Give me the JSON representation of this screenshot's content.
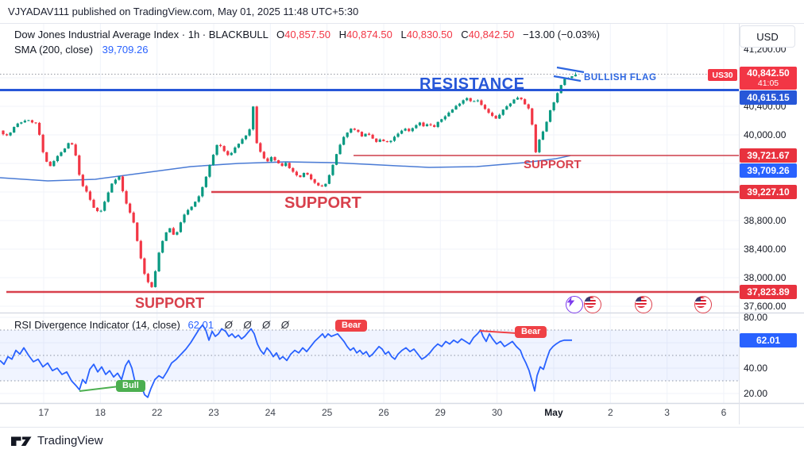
{
  "top_bar": {
    "published_text": "VJYADAV111 published on TradingView.com, May 01, 2025 11:48 UTC+5:30"
  },
  "legend": {
    "symbol_line": "Dow Jones Industrial Average Index · 1h · BLACKBULL",
    "o_label": "O",
    "o": "40,857.50",
    "h_label": "H",
    "h": "40,874.50",
    "l_label": "L",
    "l": "40,830.50",
    "c_label": "C",
    "c": "40,842.50",
    "change": "−13.00 (−0.03%)",
    "sma_label": "SMA (200, close)",
    "sma_value": "39,709.26"
  },
  "toolbar": {
    "currency_button": "USD"
  },
  "price_scale": {
    "axis_labels": [
      {
        "text": "41,200.00",
        "price": 41200
      },
      {
        "text": "40,400.00",
        "price": 40400
      },
      {
        "text": "40,000.00",
        "price": 40000
      },
      {
        "text": "38,800.00",
        "price": 38800
      },
      {
        "text": "38,400.00",
        "price": 38400
      },
      {
        "text": "38,000.00",
        "price": 38000
      },
      {
        "text": "37,600.00",
        "price": 37600
      }
    ],
    "tags": {
      "symbol_tag": "US30",
      "last_price": "40,842.50",
      "countdown": "41:05",
      "resistance_level": "40,615.15",
      "support_level_1": "39,721.67",
      "sma_value": "39,709.26",
      "support_level_2": "39,227.10",
      "support_level_3": "37,823.89",
      "rsi_value": "62.01"
    }
  },
  "rsi_pane": {
    "legend": "RSI Divergence Indicator (14, close)",
    "value": "62.01",
    "zeros": "Ø Ø Ø Ø",
    "axis_labels": [
      {
        "text": "80.00",
        "v": 80
      },
      {
        "text": "40.00",
        "v": 40
      },
      {
        "text": "20.00",
        "v": 20
      }
    ]
  },
  "annotations": {
    "resistance_label": "RESISTANCE",
    "support_label_1": "SUPPORT",
    "support_label_2": "SUPPORT",
    "support_label_3": "SUPPORT",
    "bullish_flag_label": "BULLISH FLAG",
    "bear_label_1": "Bear",
    "bear_label_2": "Bear",
    "bull_label": "Bull"
  },
  "time_axis": {
    "ticks": [
      "17",
      "18",
      "22",
      "23",
      "24",
      "25",
      "26",
      "29",
      "30",
      "May",
      "2",
      "3",
      "6"
    ]
  },
  "footer": {
    "brand": "TradingView"
  },
  "colors": {
    "up": "#089981",
    "down": "#f23645",
    "grid": "#f0f3fa",
    "drawing_blue": "#2757d8",
    "tv_blue": "#2962ff",
    "sma_blue": "#4a7bd5",
    "support_red": "#d8404c",
    "tag_red": "#e8323e",
    "bear": "#ef4146",
    "bull": "#4caf50"
  },
  "chart_data": {
    "type": "candlestick",
    "title": "Dow Jones Industrial Average Index",
    "symbol": "US30",
    "interval": "1h",
    "exchange": "BLACKBULL",
    "last_bar": {
      "open": 40857.5,
      "high": 40874.5,
      "low": 40830.5,
      "close": 40842.5,
      "change": -13.0,
      "change_pct": -0.03
    },
    "sma200_close": 39709.26,
    "rsi_14_close": 62.01,
    "key_levels": {
      "current_price": 40842.5,
      "resistance": 40615.15,
      "support_1": 39721.67,
      "support_2": 39227.1,
      "support_3": 37823.89
    },
    "y_axis": {
      "ticks": [
        41200,
        40400,
        40000,
        38800,
        38400,
        38000,
        37600
      ]
    },
    "x_axis": {
      "ticks": [
        "17",
        "18",
        "22",
        "23",
        "24",
        "25",
        "26",
        "29",
        "30",
        "May",
        "2",
        "3",
        "6"
      ]
    },
    "price_path": [
      [
        0,
        40060
      ],
      [
        12,
        39980
      ],
      [
        22,
        40140
      ],
      [
        35,
        40210
      ],
      [
        48,
        40160
      ],
      [
        53,
        39950
      ],
      [
        58,
        39650
      ],
      [
        66,
        39560
      ],
      [
        72,
        39680
      ],
      [
        80,
        39760
      ],
      [
        90,
        39900
      ],
      [
        96,
        39820
      ],
      [
        100,
        39500
      ],
      [
        106,
        39300
      ],
      [
        112,
        39180
      ],
      [
        120,
        38980
      ],
      [
        128,
        38900
      ],
      [
        136,
        39120
      ],
      [
        144,
        39350
      ],
      [
        152,
        39420
      ],
      [
        158,
        39150
      ],
      [
        164,
        38950
      ],
      [
        170,
        38800
      ],
      [
        176,
        38450
      ],
      [
        184,
        38050
      ],
      [
        190,
        37900
      ],
      [
        194,
        37860
      ],
      [
        198,
        38100
      ],
      [
        204,
        38450
      ],
      [
        212,
        38650
      ],
      [
        216,
        38700
      ],
      [
        222,
        38560
      ],
      [
        230,
        38780
      ],
      [
        236,
        38920
      ],
      [
        244,
        39000
      ],
      [
        252,
        39120
      ],
      [
        258,
        39300
      ],
      [
        264,
        39500
      ],
      [
        270,
        39700
      ],
      [
        276,
        39880
      ],
      [
        282,
        39820
      ],
      [
        288,
        39700
      ],
      [
        294,
        39760
      ],
      [
        300,
        39850
      ],
      [
        306,
        39920
      ],
      [
        312,
        40000
      ],
      [
        317,
        40080
      ],
      [
        321,
        40400
      ],
      [
        325,
        39900
      ],
      [
        332,
        39700
      ],
      [
        338,
        39620
      ],
      [
        344,
        39700
      ],
      [
        350,
        39620
      ],
      [
        356,
        39560
      ],
      [
        362,
        39600
      ],
      [
        368,
        39500
      ],
      [
        374,
        39450
      ],
      [
        380,
        39400
      ],
      [
        386,
        39480
      ],
      [
        392,
        39400
      ],
      [
        398,
        39340
      ],
      [
        404,
        39290
      ],
      [
        410,
        39260
      ],
      [
        416,
        39420
      ],
      [
        422,
        39600
      ],
      [
        428,
        39800
      ],
      [
        434,
        39950
      ],
      [
        440,
        40050
      ],
      [
        446,
        40100
      ],
      [
        452,
        40050
      ],
      [
        458,
        39980
      ],
      [
        464,
        40020
      ],
      [
        470,
        39960
      ],
      [
        476,
        39900
      ],
      [
        482,
        39940
      ],
      [
        488,
        39880
      ],
      [
        494,
        39920
      ],
      [
        500,
        39980
      ],
      [
        506,
        40040
      ],
      [
        512,
        40090
      ],
      [
        518,
        40050
      ],
      [
        524,
        40120
      ],
      [
        530,
        40180
      ],
      [
        536,
        40120
      ],
      [
        542,
        40160
      ],
      [
        548,
        40100
      ],
      [
        554,
        40180
      ],
      [
        560,
        40240
      ],
      [
        566,
        40300
      ],
      [
        572,
        40360
      ],
      [
        578,
        40420
      ],
      [
        584,
        40480
      ],
      [
        590,
        40520
      ],
      [
        596,
        40460
      ],
      [
        602,
        40500
      ],
      [
        608,
        40420
      ],
      [
        614,
        40340
      ],
      [
        620,
        40280
      ],
      [
        626,
        40220
      ],
      [
        632,
        40300
      ],
      [
        638,
        40380
      ],
      [
        644,
        40440
      ],
      [
        650,
        40500
      ],
      [
        656,
        40540
      ],
      [
        660,
        40480
      ],
      [
        664,
        40420
      ],
      [
        668,
        40350
      ],
      [
        671,
        40280
      ],
      [
        674,
        39850
      ],
      [
        677,
        39745
      ],
      [
        680,
        39900
      ],
      [
        684,
        40000
      ],
      [
        688,
        40120
      ],
      [
        692,
        40250
      ],
      [
        696,
        40380
      ],
      [
        700,
        40480
      ],
      [
        704,
        40580
      ],
      [
        708,
        40680
      ],
      [
        712,
        40780
      ],
      [
        716,
        40820
      ],
      [
        719,
        40790
      ],
      [
        722,
        40830
      ],
      [
        725,
        40842.5
      ]
    ],
    "sma_path": [
      [
        0,
        39400
      ],
      [
        60,
        39356
      ],
      [
        120,
        39378
      ],
      [
        180,
        39467
      ],
      [
        240,
        39556
      ],
      [
        300,
        39600
      ],
      [
        360,
        39622
      ],
      [
        420,
        39611
      ],
      [
        480,
        39578
      ],
      [
        540,
        39544
      ],
      [
        600,
        39556
      ],
      [
        660,
        39611
      ],
      [
        700,
        39667
      ],
      [
        718,
        39709
      ]
    ],
    "rsi_series": {
      "range": [
        20,
        80
      ],
      "overbought": 70,
      "midline": 50,
      "oversold": 30,
      "points": [
        [
          0,
          46
        ],
        [
          5,
          43
        ],
        [
          10,
          49
        ],
        [
          15,
          47
        ],
        [
          20,
          54
        ],
        [
          25,
          51
        ],
        [
          30,
          56
        ],
        [
          36,
          50
        ],
        [
          42,
          45
        ],
        [
          48,
          47
        ],
        [
          54,
          41
        ],
        [
          60,
          44
        ],
        [
          66,
          38
        ],
        [
          72,
          40
        ],
        [
          78,
          35
        ],
        [
          84,
          37
        ],
        [
          90,
          30
        ],
        [
          96,
          26
        ],
        [
          100,
          23
        ],
        [
          104,
          31
        ],
        [
          108,
          28
        ],
        [
          113,
          39
        ],
        [
          118,
          43
        ],
        [
          123,
          37
        ],
        [
          128,
          41
        ],
        [
          133,
          35
        ],
        [
          138,
          38
        ],
        [
          143,
          33
        ],
        [
          148,
          36
        ],
        [
          153,
          31
        ],
        [
          158,
          42
        ],
        [
          162,
          46
        ],
        [
          166,
          40
        ],
        [
          170,
          29
        ],
        [
          174,
          23
        ],
        [
          178,
          26
        ],
        [
          182,
          19
        ],
        [
          186,
          17
        ],
        [
          190,
          24
        ],
        [
          195,
          31
        ],
        [
          200,
          34
        ],
        [
          205,
          32
        ],
        [
          210,
          37
        ],
        [
          216,
          44
        ],
        [
          222,
          47
        ],
        [
          228,
          51
        ],
        [
          234,
          55
        ],
        [
          240,
          60
        ],
        [
          246,
          66
        ],
        [
          251,
          71
        ],
        [
          255,
          74
        ],
        [
          259,
          70
        ],
        [
          263,
          62
        ],
        [
          267,
          69
        ],
        [
          271,
          65
        ],
        [
          275,
          67
        ],
        [
          279,
          71
        ],
        [
          284,
          69
        ],
        [
          288,
          65
        ],
        [
          292,
          67
        ],
        [
          296,
          64
        ],
        [
          300,
          66
        ],
        [
          304,
          63
        ],
        [
          308,
          65
        ],
        [
          312,
          68
        ],
        [
          316,
          71
        ],
        [
          320,
          67
        ],
        [
          324,
          59
        ],
        [
          328,
          54
        ],
        [
          332,
          51
        ],
        [
          336,
          56
        ],
        [
          340,
          53
        ],
        [
          344,
          49
        ],
        [
          348,
          52
        ],
        [
          352,
          47
        ],
        [
          356,
          49
        ],
        [
          361,
          46
        ],
        [
          366,
          51
        ],
        [
          371,
          54
        ],
        [
          376,
          52
        ],
        [
          381,
          56
        ],
        [
          386,
          53
        ],
        [
          391,
          57
        ],
        [
          396,
          61
        ],
        [
          401,
          64
        ],
        [
          406,
          67
        ],
        [
          409,
          64
        ],
        [
          413,
          67
        ],
        [
          417,
          65
        ],
        [
          421,
          66
        ],
        [
          425,
          67
        ],
        [
          429,
          64
        ],
        [
          433,
          61
        ],
        [
          437,
          57
        ],
        [
          441,
          54
        ],
        [
          445,
          56
        ],
        [
          449,
          52
        ],
        [
          453,
          54
        ],
        [
          457,
          51
        ],
        [
          461,
          53
        ],
        [
          465,
          49
        ],
        [
          469,
          51
        ],
        [
          473,
          54
        ],
        [
          477,
          57
        ],
        [
          481,
          55
        ],
        [
          485,
          51
        ],
        [
          489,
          53
        ],
        [
          493,
          49
        ],
        [
          497,
          47
        ],
        [
          501,
          51
        ],
        [
          506,
          54
        ],
        [
          511,
          56
        ],
        [
          516,
          53
        ],
        [
          521,
          55
        ],
        [
          526,
          51
        ],
        [
          531,
          47
        ],
        [
          536,
          49
        ],
        [
          541,
          52
        ],
        [
          546,
          56
        ],
        [
          551,
          59
        ],
        [
          556,
          57
        ],
        [
          561,
          61
        ],
        [
          566,
          59
        ],
        [
          571,
          62
        ],
        [
          576,
          60
        ],
        [
          581,
          63
        ],
        [
          586,
          61
        ],
        [
          591,
          59
        ],
        [
          596,
          64
        ],
        [
          601,
          67
        ],
        [
          605,
          70
        ],
        [
          608,
          65
        ],
        [
          612,
          61
        ],
        [
          616,
          67
        ],
        [
          620,
          63
        ],
        [
          625,
          59
        ],
        [
          630,
          61
        ],
        [
          635,
          57
        ],
        [
          640,
          59
        ],
        [
          645,
          61
        ],
        [
          650,
          57
        ],
        [
          655,
          54
        ],
        [
          658,
          49
        ],
        [
          662,
          44
        ],
        [
          666,
          38
        ],
        [
          670,
          29
        ],
        [
          673,
          22
        ],
        [
          676,
          34
        ],
        [
          680,
          41
        ],
        [
          684,
          39
        ],
        [
          688,
          47
        ],
        [
          692,
          54
        ],
        [
          696,
          57
        ],
        [
          700,
          59
        ],
        [
          705,
          61
        ],
        [
          710,
          62
        ],
        [
          715,
          62
        ],
        [
          720,
          62
        ]
      ]
    }
  }
}
